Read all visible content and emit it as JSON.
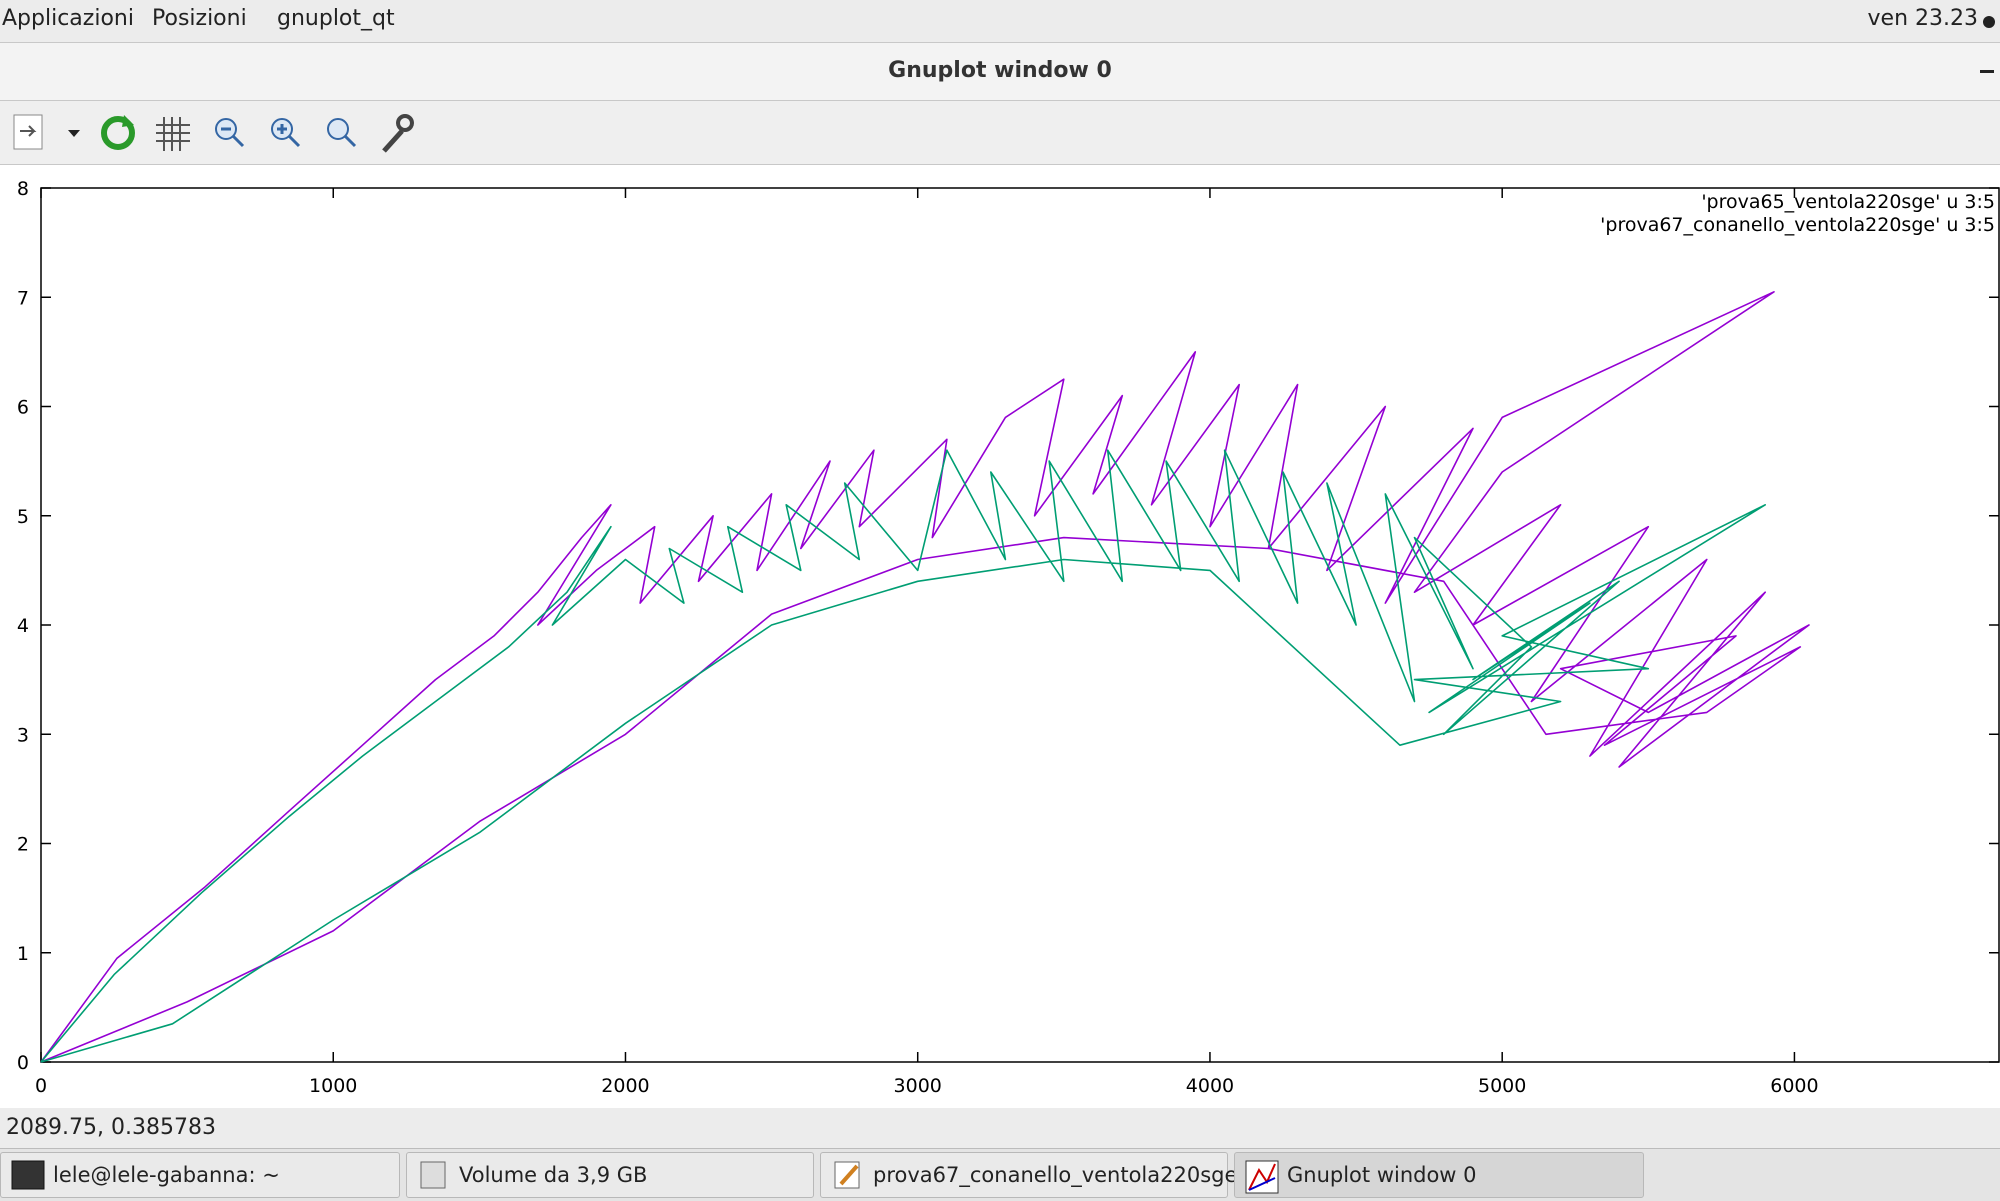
{
  "top_bar": {
    "menus": [
      "Applicazioni",
      "Posizioni",
      "gnuplot_qt"
    ],
    "clock": "ven 23.23"
  },
  "window": {
    "title": "Gnuplot window 0"
  },
  "chart_data": {
    "type": "line",
    "series": [
      {
        "name": "'prova65_ventola220sge' u 3:5",
        "color": "#9400d3",
        "x": [
          0,
          260,
          560,
          850,
          1100,
          1350,
          1550,
          1700,
          1850,
          1950,
          1700,
          1900,
          2100,
          2050,
          2300,
          2250,
          2500,
          2450,
          2700,
          2600,
          2850,
          2800,
          3100,
          3050,
          3300,
          3500,
          3400,
          3700,
          3600,
          3950,
          3800,
          4100,
          4000,
          4300,
          4200,
          4600,
          4400,
          4900,
          4600,
          5000,
          5930,
          5000,
          4700,
          5200,
          4900,
          5500,
          5100,
          5700,
          5300,
          5900,
          5400,
          6050,
          5500,
          5200,
          5800,
          5350,
          6020,
          5700,
          5150,
          4800,
          4200,
          3500,
          3000,
          2500,
          2000,
          1500,
          1000,
          500,
          0
        ],
        "values": [
          0,
          0.95,
          1.6,
          2.3,
          2.9,
          3.5,
          3.9,
          4.3,
          4.8,
          5.1,
          4.0,
          4.5,
          4.9,
          4.2,
          5.0,
          4.4,
          5.2,
          4.5,
          5.5,
          4.7,
          5.6,
          4.9,
          5.7,
          4.8,
          5.9,
          6.25,
          5.0,
          6.1,
          5.2,
          6.5,
          5.1,
          6.2,
          4.9,
          6.2,
          4.7,
          6.0,
          4.5,
          5.8,
          4.2,
          5.9,
          7.05,
          5.4,
          4.3,
          5.1,
          4.0,
          4.9,
          3.3,
          4.6,
          2.8,
          4.3,
          2.7,
          4.0,
          3.2,
          3.6,
          3.9,
          2.9,
          3.8,
          3.2,
          3.0,
          4.4,
          4.7,
          4.8,
          4.6,
          4.1,
          3.0,
          2.2,
          1.2,
          0.55,
          0
        ]
      },
      {
        "name": "'prova67_conanello_ventola220sge' u 3:5",
        "color": "#009e73",
        "x": [
          0,
          250,
          550,
          850,
          1100,
          1350,
          1600,
          1800,
          1950,
          1750,
          2000,
          2200,
          2150,
          2400,
          2350,
          2600,
          2550,
          2800,
          2750,
          3000,
          3100,
          3300,
          3250,
          3500,
          3450,
          3700,
          3650,
          3900,
          3850,
          4100,
          4050,
          4300,
          4250,
          4500,
          4400,
          4700,
          4600,
          4900,
          4700,
          5100,
          4800,
          5400,
          4900,
          5300,
          4750,
          5900,
          5000,
          5500,
          4700,
          5200,
          4650,
          4000,
          3500,
          3000,
          2500,
          2000,
          1500,
          1000,
          450,
          0
        ],
        "values": [
          0,
          0.8,
          1.55,
          2.25,
          2.8,
          3.3,
          3.8,
          4.3,
          4.9,
          4.0,
          4.6,
          4.2,
          4.7,
          4.3,
          4.9,
          4.5,
          5.1,
          4.6,
          5.3,
          4.5,
          5.6,
          4.6,
          5.4,
          4.4,
          5.5,
          4.4,
          5.6,
          4.5,
          5.5,
          4.4,
          5.6,
          4.2,
          5.4,
          4.0,
          5.3,
          3.3,
          5.2,
          3.6,
          4.8,
          3.8,
          3.0,
          4.4,
          3.5,
          4.2,
          3.2,
          5.1,
          3.9,
          3.6,
          3.5,
          3.3,
          2.9,
          4.5,
          4.6,
          4.4,
          4.0,
          3.1,
          2.1,
          1.3,
          0.35,
          0
        ]
      }
    ],
    "xlim": [
      0,
      6700
    ],
    "ylim": [
      0,
      8
    ],
    "xticks": [
      0,
      1000,
      2000,
      3000,
      4000,
      5000,
      6000
    ],
    "yticks": [
      0,
      1,
      2,
      3,
      4,
      5,
      6,
      7,
      8
    ],
    "legend": "top-right"
  },
  "status_bar": {
    "coordinates": "2089.75,  0.385783"
  },
  "taskbar": {
    "items": [
      "lele@lele-gabanna: ~",
      "Volume da 3,9 GB",
      "prova67_conanello_ventola220sge ...",
      "Gnuplot window 0"
    ]
  }
}
